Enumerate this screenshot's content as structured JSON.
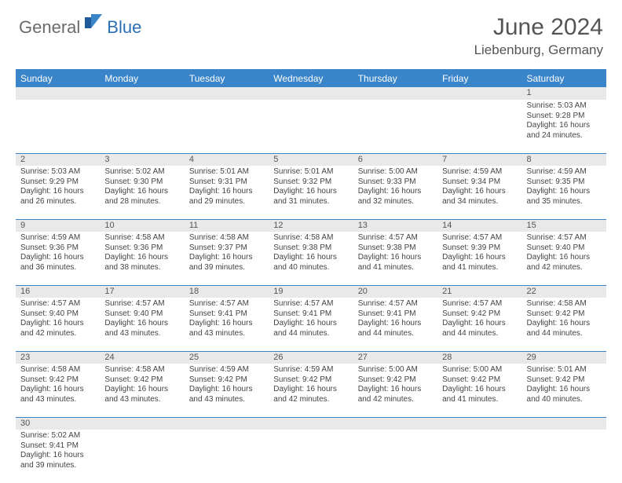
{
  "logo": {
    "text1": "General",
    "text2": "Blue"
  },
  "title": "June 2024",
  "location": "Liebenburg, Germany",
  "colors": {
    "header_bg": "#3a85c9",
    "header_fg": "#ffffff",
    "daynum_bg": "#e9e9e9",
    "border": "#3a85c9",
    "text": "#444444",
    "logo_gray": "#6b6b6b",
    "logo_blue": "#2d6fb5"
  },
  "weekdays": [
    "Sunday",
    "Monday",
    "Tuesday",
    "Wednesday",
    "Thursday",
    "Friday",
    "Saturday"
  ],
  "weeks": [
    [
      null,
      null,
      null,
      null,
      null,
      null,
      {
        "n": "1",
        "sr": "5:03 AM",
        "ss": "9:28 PM",
        "dl": "16 hours and 24 minutes."
      }
    ],
    [
      {
        "n": "2",
        "sr": "5:03 AM",
        "ss": "9:29 PM",
        "dl": "16 hours and 26 minutes."
      },
      {
        "n": "3",
        "sr": "5:02 AM",
        "ss": "9:30 PM",
        "dl": "16 hours and 28 minutes."
      },
      {
        "n": "4",
        "sr": "5:01 AM",
        "ss": "9:31 PM",
        "dl": "16 hours and 29 minutes."
      },
      {
        "n": "5",
        "sr": "5:01 AM",
        "ss": "9:32 PM",
        "dl": "16 hours and 31 minutes."
      },
      {
        "n": "6",
        "sr": "5:00 AM",
        "ss": "9:33 PM",
        "dl": "16 hours and 32 minutes."
      },
      {
        "n": "7",
        "sr": "4:59 AM",
        "ss": "9:34 PM",
        "dl": "16 hours and 34 minutes."
      },
      {
        "n": "8",
        "sr": "4:59 AM",
        "ss": "9:35 PM",
        "dl": "16 hours and 35 minutes."
      }
    ],
    [
      {
        "n": "9",
        "sr": "4:59 AM",
        "ss": "9:36 PM",
        "dl": "16 hours and 36 minutes."
      },
      {
        "n": "10",
        "sr": "4:58 AM",
        "ss": "9:36 PM",
        "dl": "16 hours and 38 minutes."
      },
      {
        "n": "11",
        "sr": "4:58 AM",
        "ss": "9:37 PM",
        "dl": "16 hours and 39 minutes."
      },
      {
        "n": "12",
        "sr": "4:58 AM",
        "ss": "9:38 PM",
        "dl": "16 hours and 40 minutes."
      },
      {
        "n": "13",
        "sr": "4:57 AM",
        "ss": "9:38 PM",
        "dl": "16 hours and 41 minutes."
      },
      {
        "n": "14",
        "sr": "4:57 AM",
        "ss": "9:39 PM",
        "dl": "16 hours and 41 minutes."
      },
      {
        "n": "15",
        "sr": "4:57 AM",
        "ss": "9:40 PM",
        "dl": "16 hours and 42 minutes."
      }
    ],
    [
      {
        "n": "16",
        "sr": "4:57 AM",
        "ss": "9:40 PM",
        "dl": "16 hours and 42 minutes."
      },
      {
        "n": "17",
        "sr": "4:57 AM",
        "ss": "9:40 PM",
        "dl": "16 hours and 43 minutes."
      },
      {
        "n": "18",
        "sr": "4:57 AM",
        "ss": "9:41 PM",
        "dl": "16 hours and 43 minutes."
      },
      {
        "n": "19",
        "sr": "4:57 AM",
        "ss": "9:41 PM",
        "dl": "16 hours and 44 minutes."
      },
      {
        "n": "20",
        "sr": "4:57 AM",
        "ss": "9:41 PM",
        "dl": "16 hours and 44 minutes."
      },
      {
        "n": "21",
        "sr": "4:57 AM",
        "ss": "9:42 PM",
        "dl": "16 hours and 44 minutes."
      },
      {
        "n": "22",
        "sr": "4:58 AM",
        "ss": "9:42 PM",
        "dl": "16 hours and 44 minutes."
      }
    ],
    [
      {
        "n": "23",
        "sr": "4:58 AM",
        "ss": "9:42 PM",
        "dl": "16 hours and 43 minutes."
      },
      {
        "n": "24",
        "sr": "4:58 AM",
        "ss": "9:42 PM",
        "dl": "16 hours and 43 minutes."
      },
      {
        "n": "25",
        "sr": "4:59 AM",
        "ss": "9:42 PM",
        "dl": "16 hours and 43 minutes."
      },
      {
        "n": "26",
        "sr": "4:59 AM",
        "ss": "9:42 PM",
        "dl": "16 hours and 42 minutes."
      },
      {
        "n": "27",
        "sr": "5:00 AM",
        "ss": "9:42 PM",
        "dl": "16 hours and 42 minutes."
      },
      {
        "n": "28",
        "sr": "5:00 AM",
        "ss": "9:42 PM",
        "dl": "16 hours and 41 minutes."
      },
      {
        "n": "29",
        "sr": "5:01 AM",
        "ss": "9:42 PM",
        "dl": "16 hours and 40 minutes."
      }
    ],
    [
      {
        "n": "30",
        "sr": "5:02 AM",
        "ss": "9:41 PM",
        "dl": "16 hours and 39 minutes."
      },
      null,
      null,
      null,
      null,
      null,
      null
    ]
  ],
  "labels": {
    "sunrise": "Sunrise:",
    "sunset": "Sunset:",
    "daylight": "Daylight:"
  }
}
